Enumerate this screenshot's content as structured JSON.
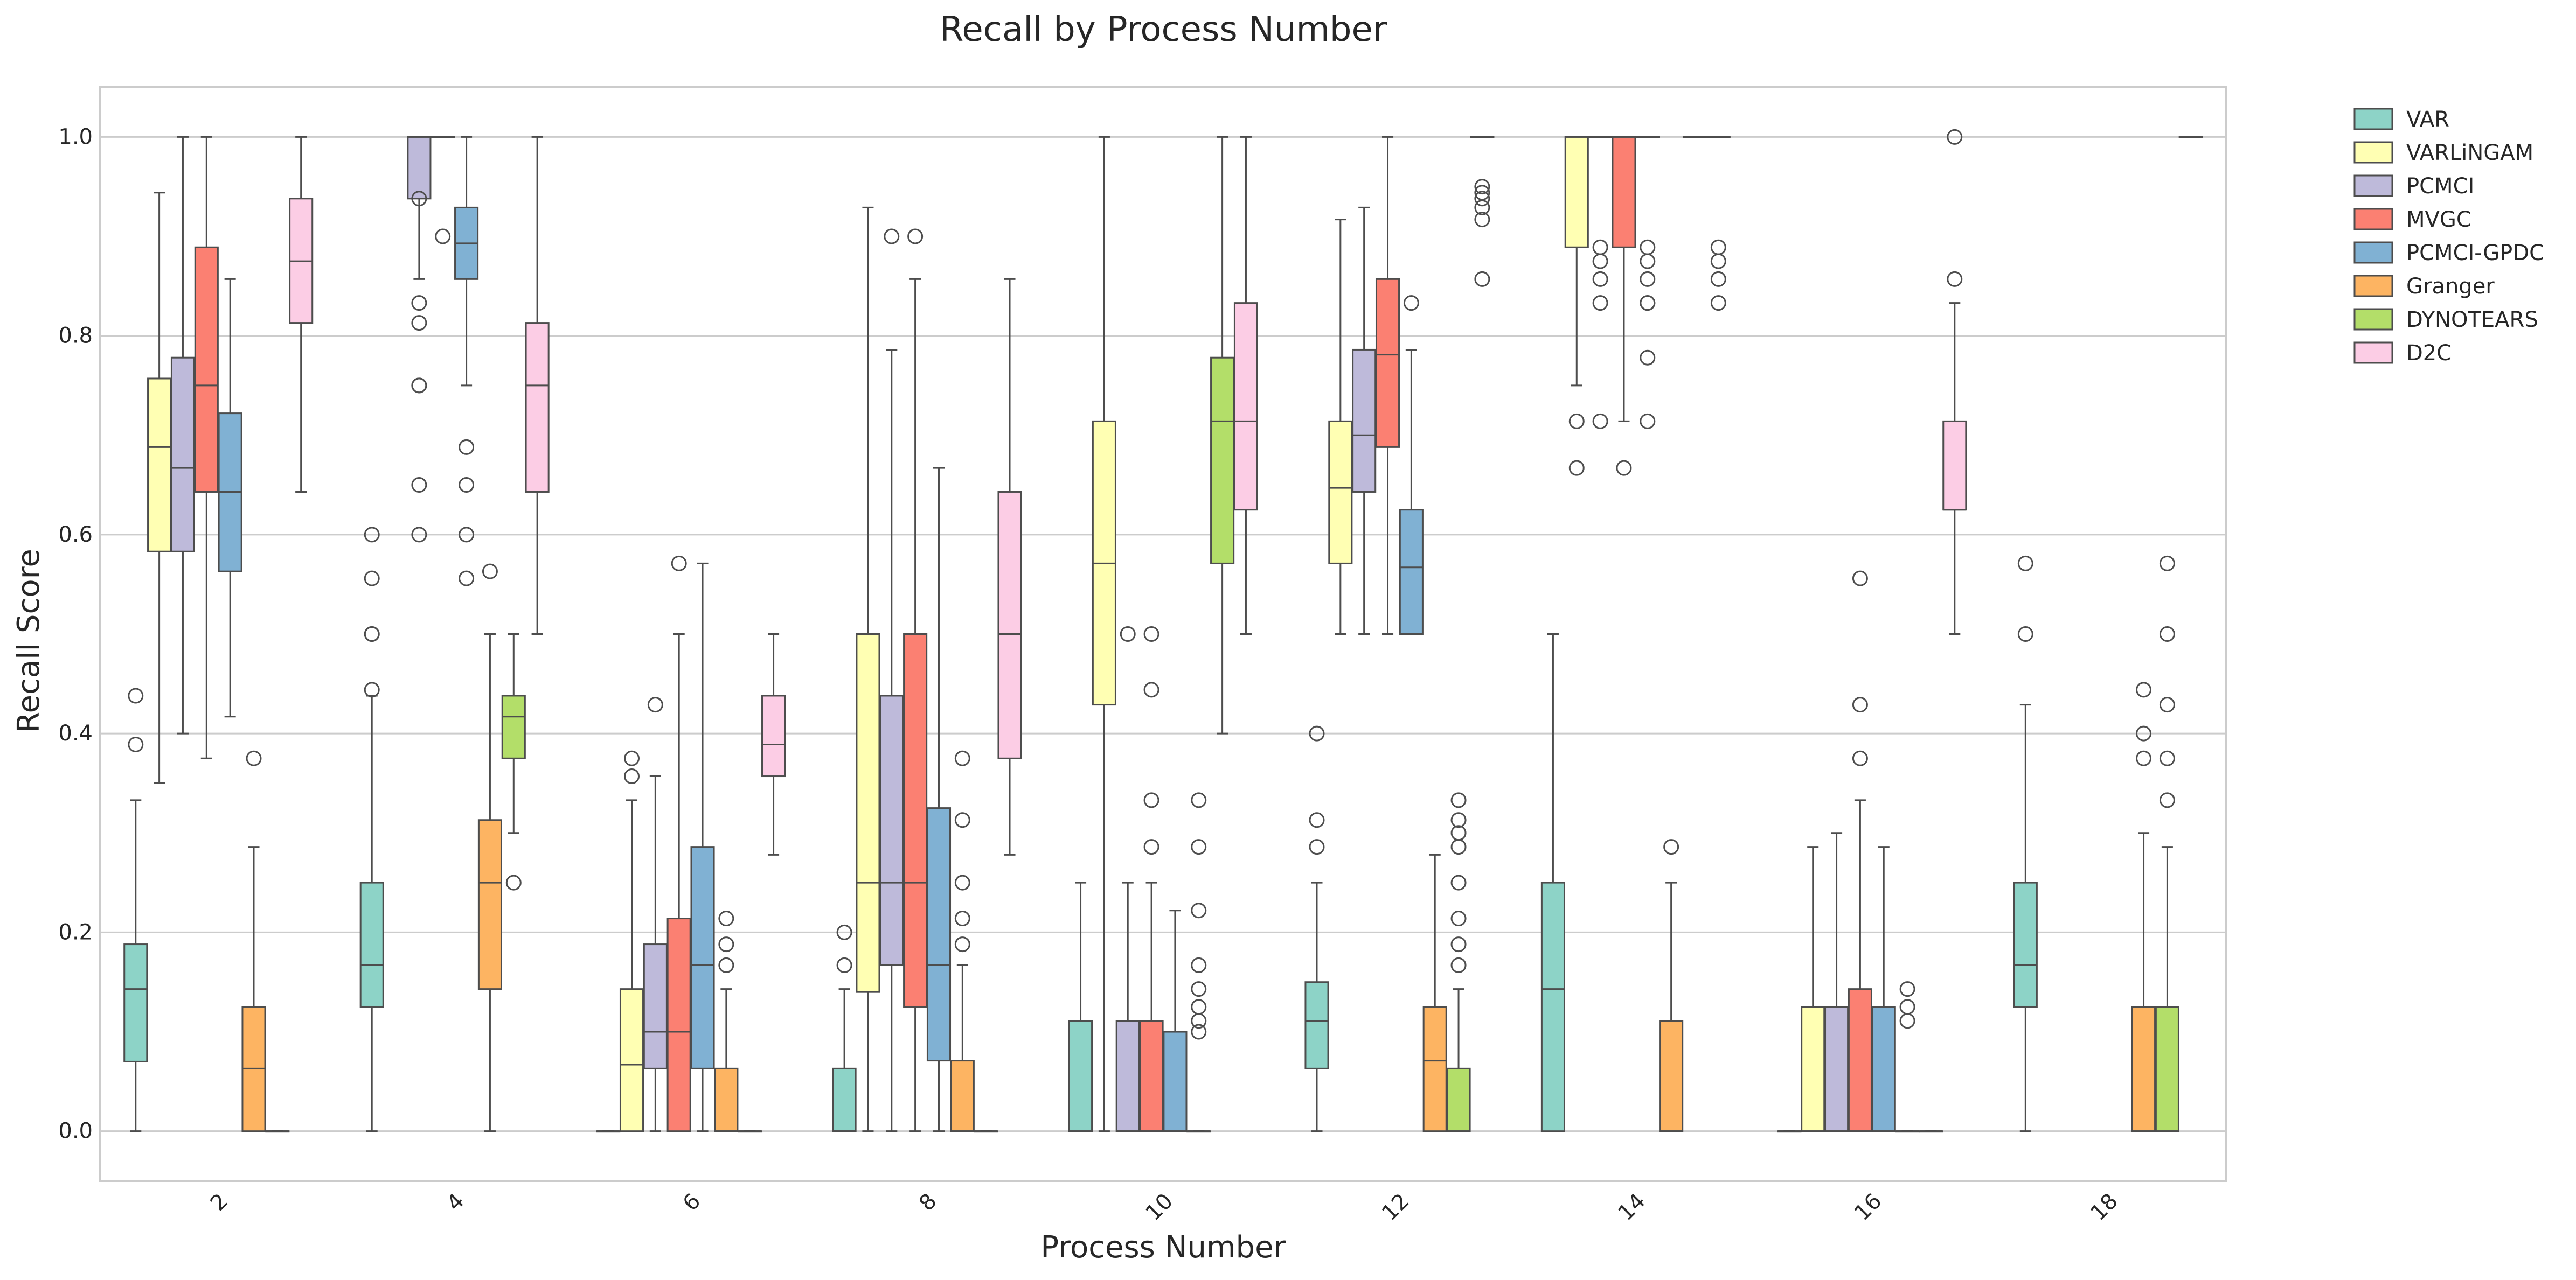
{
  "chart_data": {
    "type": "box",
    "title": "Recall by Process Number",
    "xlabel": "Process Number",
    "ylabel": "Recall Score",
    "ylim": [
      -0.05,
      1.05
    ],
    "yticks": [
      "0.0",
      "0.2",
      "0.4",
      "0.6",
      "0.8",
      "1.0"
    ],
    "ytick_values": [
      0,
      0.2,
      0.4,
      0.6,
      0.8,
      1.0
    ],
    "grid": "horizontal",
    "legend_position": "outside top-right",
    "categories": [
      "2",
      "4",
      "6",
      "8",
      "10",
      "12",
      "14",
      "16",
      "18"
    ],
    "series": [
      {
        "name": "VAR",
        "color": "#8dd3c7",
        "boxes": [
          {
            "min": 0.0,
            "q1": 0.07,
            "median": 0.143,
            "q3": 0.188,
            "max": 0.333,
            "outliers": [
              0.389,
              0.438
            ]
          },
          {
            "min": 0.0,
            "q1": 0.125,
            "median": 0.167,
            "q3": 0.25,
            "max": 0.438,
            "outliers": [
              0.444,
              0.5,
              0.5,
              0.556,
              0.6
            ]
          },
          {
            "min": 0.0,
            "q1": 0.0,
            "median": 0.0,
            "q3": 0.0,
            "max": 0.0,
            "outliers": []
          },
          {
            "min": 0.0,
            "q1": 0.0,
            "median": 0.0,
            "q3": 0.063,
            "max": 0.143,
            "outliers": [
              0.167,
              0.2
            ]
          },
          {
            "min": 0.0,
            "q1": 0.0,
            "median": 0.0,
            "q3": 0.111,
            "max": 0.25,
            "outliers": []
          },
          {
            "min": 0.0,
            "q1": 0.063,
            "median": 0.111,
            "q3": 0.15,
            "max": 0.25,
            "outliers": [
              0.286,
              0.313,
              0.4
            ]
          },
          {
            "min": 0.0,
            "q1": 0.0,
            "median": 0.143,
            "q3": 0.25,
            "max": 0.5,
            "outliers": []
          },
          {
            "min": 0.0,
            "q1": 0.0,
            "median": 0.0,
            "q3": 0.0,
            "max": 0.0,
            "outliers": []
          },
          {
            "min": 0.0,
            "q1": 0.125,
            "median": 0.167,
            "q3": 0.25,
            "max": 0.429,
            "outliers": [
              0.5,
              0.571
            ]
          }
        ]
      },
      {
        "name": "VARLiNGAM",
        "color": "#ffffb3",
        "boxes": [
          {
            "min": 0.35,
            "q1": 0.583,
            "median": 0.688,
            "q3": 0.757,
            "max": 0.944,
            "outliers": []
          },
          null,
          {
            "min": 0.0,
            "q1": 0.0,
            "median": 0.067,
            "q3": 0.143,
            "max": 0.333,
            "outliers": [
              0.357,
              0.375
            ]
          },
          {
            "min": 0.0,
            "q1": 0.14,
            "median": 0.25,
            "q3": 0.5,
            "max": 0.929,
            "outliers": []
          },
          {
            "min": 0.0,
            "q1": 0.429,
            "median": 0.571,
            "q3": 0.714,
            "max": 1.0,
            "outliers": []
          },
          {
            "min": 0.5,
            "q1": 0.571,
            "median": 0.647,
            "q3": 0.714,
            "max": 0.917,
            "outliers": []
          },
          {
            "min": 0.75,
            "q1": 0.889,
            "median": 1.0,
            "q3": 1.0,
            "max": 1.0,
            "outliers": [
              0.714,
              0.667
            ]
          },
          {
            "min": 0.0,
            "q1": 0.0,
            "median": 0.0,
            "q3": 0.125,
            "max": 0.286,
            "outliers": []
          },
          null
        ]
      },
      {
        "name": "PCMCI",
        "color": "#bebada",
        "boxes": [
          {
            "min": 0.4,
            "q1": 0.583,
            "median": 0.667,
            "q3": 0.778,
            "max": 1.0,
            "outliers": []
          },
          {
            "min": 0.857,
            "q1": 0.938,
            "median": 1.0,
            "q3": 1.0,
            "max": 1.0,
            "outliers": [
              0.833,
              0.813,
              0.75,
              0.75,
              0.65,
              0.6,
              0.938
            ]
          },
          {
            "min": 0.0,
            "q1": 0.063,
            "median": 0.1,
            "q3": 0.188,
            "max": 0.357,
            "outliers": [
              0.429
            ]
          },
          {
            "min": 0.0,
            "q1": 0.167,
            "median": 0.25,
            "q3": 0.438,
            "max": 0.786,
            "outliers": [
              0.9
            ]
          },
          {
            "min": 0.0,
            "q1": 0.0,
            "median": 0.0,
            "q3": 0.111,
            "max": 0.25,
            "outliers": [
              0.5
            ]
          },
          {
            "min": 0.5,
            "q1": 0.643,
            "median": 0.7,
            "q3": 0.786,
            "max": 0.929,
            "outliers": []
          },
          {
            "min": 1.0,
            "q1": 1.0,
            "median": 1.0,
            "q3": 1.0,
            "max": 1.0,
            "outliers": [
              0.889,
              0.875,
              0.857,
              0.833,
              0.714
            ]
          },
          {
            "min": 0.0,
            "q1": 0.0,
            "median": 0.0,
            "q3": 0.125,
            "max": 0.3,
            "outliers": []
          },
          null
        ]
      },
      {
        "name": "MVGC",
        "color": "#fb8072",
        "boxes": [
          {
            "min": 0.375,
            "q1": 0.643,
            "median": 0.75,
            "q3": 0.889,
            "max": 1.0,
            "outliers": []
          },
          {
            "min": 1.0,
            "q1": 1.0,
            "median": 1.0,
            "q3": 1.0,
            "max": 1.0,
            "outliers": [
              0.9
            ]
          },
          {
            "min": 0.0,
            "q1": 0.0,
            "median": 0.1,
            "q3": 0.214,
            "max": 0.5,
            "outliers": [
              0.571
            ]
          },
          {
            "min": 0.0,
            "q1": 0.125,
            "median": 0.25,
            "q3": 0.5,
            "max": 0.857,
            "outliers": [
              0.9
            ]
          },
          {
            "min": 0.0,
            "q1": 0.0,
            "median": 0.0,
            "q3": 0.111,
            "max": 0.25,
            "outliers": [
              0.5,
              0.444,
              0.333,
              0.286
            ]
          },
          {
            "min": 0.5,
            "q1": 0.688,
            "median": 0.781,
            "q3": 0.857,
            "max": 1.0,
            "outliers": []
          },
          {
            "min": 0.714,
            "q1": 0.889,
            "median": 1.0,
            "q3": 1.0,
            "max": 1.0,
            "outliers": [
              0.667
            ]
          },
          {
            "min": 0.0,
            "q1": 0.0,
            "median": 0.0,
            "q3": 0.143,
            "max": 0.333,
            "outliers": [
              0.375,
              0.429,
              0.556
            ]
          },
          null
        ]
      },
      {
        "name": "PCMCI-GPDC",
        "color": "#80b1d3",
        "boxes": [
          {
            "min": 0.417,
            "q1": 0.563,
            "median": 0.643,
            "q3": 0.722,
            "max": 0.857,
            "outliers": []
          },
          {
            "min": 0.75,
            "q1": 0.857,
            "median": 0.893,
            "q3": 0.929,
            "max": 1.0,
            "outliers": [
              0.688,
              0.65,
              0.6,
              0.556
            ]
          },
          {
            "min": 0.0,
            "q1": 0.063,
            "median": 0.167,
            "q3": 0.286,
            "max": 0.571,
            "outliers": []
          },
          {
            "min": 0.0,
            "q1": 0.071,
            "median": 0.167,
            "q3": 0.325,
            "max": 0.667,
            "outliers": []
          },
          {
            "min": 0.0,
            "q1": 0.0,
            "median": 0.0,
            "q3": 0.1,
            "max": 0.222,
            "outliers": []
          },
          {
            "min": 0.5,
            "q1": 0.5,
            "median": 0.567,
            "q3": 0.625,
            "max": 0.786,
            "outliers": [
              0.833
            ]
          },
          {
            "min": 1.0,
            "q1": 1.0,
            "median": 1.0,
            "q3": 1.0,
            "max": 1.0,
            "outliers": [
              0.889,
              0.875,
              0.857,
              0.833,
              0.833,
              0.778,
              0.714
            ]
          },
          {
            "min": 0.0,
            "q1": 0.0,
            "median": 0.0,
            "q3": 0.125,
            "max": 0.286,
            "outliers": []
          },
          null
        ]
      },
      {
        "name": "Granger",
        "color": "#fdb462",
        "boxes": [
          {
            "min": 0.0,
            "q1": 0.0,
            "median": 0.063,
            "q3": 0.125,
            "max": 0.286,
            "outliers": [
              0.375
            ]
          },
          {
            "min": 0.0,
            "q1": 0.143,
            "median": 0.25,
            "q3": 0.313,
            "max": 0.5,
            "outliers": [
              0.563
            ]
          },
          {
            "min": 0.0,
            "q1": 0.0,
            "median": 0.0,
            "q3": 0.063,
            "max": 0.143,
            "outliers": [
              0.167,
              0.188,
              0.214
            ]
          },
          {
            "min": 0.0,
            "q1": 0.0,
            "median": 0.0,
            "q3": 0.071,
            "max": 0.167,
            "outliers": [
              0.188,
              0.214,
              0.25,
              0.313,
              0.375
            ]
          },
          {
            "min": 0.0,
            "q1": 0.0,
            "median": 0.0,
            "q3": 0.0,
            "max": 0.0,
            "outliers": [
              0.1,
              0.111,
              0.125,
              0.143,
              0.167,
              0.222,
              0.286,
              0.333
            ]
          },
          {
            "min": 0.0,
            "q1": 0.0,
            "median": 0.071,
            "q3": 0.125,
            "max": 0.278,
            "outliers": []
          },
          {
            "min": 0.0,
            "q1": 0.0,
            "median": 0.0,
            "q3": 0.111,
            "max": 0.25,
            "outliers": [
              0.286
            ]
          },
          {
            "min": 0.0,
            "q1": 0.0,
            "median": 0.0,
            "q3": 0.0,
            "max": 0.0,
            "outliers": [
              0.111,
              0.125,
              0.143
            ]
          },
          {
            "min": 0.0,
            "q1": 0.0,
            "median": 0.0,
            "q3": 0.125,
            "max": 0.3,
            "outliers": [
              0.375,
              0.4,
              0.444
            ]
          }
        ]
      },
      {
        "name": "DYNOTEARS",
        "color": "#b3de69",
        "boxes": [
          {
            "min": 0.0,
            "q1": 0.0,
            "median": 0.0,
            "q3": 0.0,
            "max": 0.0,
            "outliers": []
          },
          {
            "min": 0.3,
            "q1": 0.375,
            "median": 0.417,
            "q3": 0.438,
            "max": 0.5,
            "outliers": [
              0.25
            ]
          },
          {
            "min": 0.0,
            "q1": 0.0,
            "median": 0.0,
            "q3": 0.0,
            "max": 0.0,
            "outliers": []
          },
          {
            "min": 0.0,
            "q1": 0.0,
            "median": 0.0,
            "q3": 0.0,
            "max": 0.0,
            "outliers": []
          },
          {
            "min": 0.4,
            "q1": 0.571,
            "median": 0.714,
            "q3": 0.778,
            "max": 1.0,
            "outliers": []
          },
          {
            "min": 0.0,
            "q1": 0.0,
            "median": 0.0,
            "q3": 0.063,
            "max": 0.143,
            "outliers": [
              0.167,
              0.188,
              0.214,
              0.25,
              0.286,
              0.3,
              0.313,
              0.333
            ]
          },
          {
            "min": 1.0,
            "q1": 1.0,
            "median": 1.0,
            "q3": 1.0,
            "max": 1.0,
            "outliers": []
          },
          {
            "min": 0.0,
            "q1": 0.0,
            "median": 0.0,
            "q3": 0.0,
            "max": 0.0,
            "outliers": []
          },
          {
            "min": 0.0,
            "q1": 0.0,
            "median": 0.0,
            "q3": 0.125,
            "max": 0.286,
            "outliers": [
              0.333,
              0.375,
              0.429,
              0.5,
              0.571
            ]
          }
        ]
      },
      {
        "name": "D2C",
        "color": "#fccde5",
        "boxes": [
          {
            "min": 0.643,
            "q1": 0.813,
            "median": 0.875,
            "q3": 0.938,
            "max": 1.0,
            "outliers": []
          },
          {
            "min": 0.5,
            "q1": 0.643,
            "median": 0.75,
            "q3": 0.813,
            "max": 1.0,
            "outliers": []
          },
          {
            "min": 0.278,
            "q1": 0.357,
            "median": 0.389,
            "q3": 0.438,
            "max": 0.5,
            "outliers": []
          },
          {
            "min": 0.278,
            "q1": 0.375,
            "median": 0.5,
            "q3": 0.643,
            "max": 0.857,
            "outliers": []
          },
          {
            "min": 0.5,
            "q1": 0.625,
            "median": 0.714,
            "q3": 0.833,
            "max": 1.0,
            "outliers": []
          },
          {
            "min": 1.0,
            "q1": 1.0,
            "median": 1.0,
            "q3": 1.0,
            "max": 1.0,
            "outliers": [
              0.95,
              0.944,
              0.938,
              0.929,
              0.917,
              0.857
            ]
          },
          {
            "min": 1.0,
            "q1": 1.0,
            "median": 1.0,
            "q3": 1.0,
            "max": 1.0,
            "outliers": [
              0.889,
              0.875,
              0.857,
              0.833
            ]
          },
          {
            "min": 0.5,
            "q1": 0.625,
            "median": 0.625,
            "q3": 0.714,
            "max": 0.833,
            "outliers": [
              0.857,
              1.0
            ]
          },
          {
            "min": 1.0,
            "q1": 1.0,
            "median": 1.0,
            "q3": 1.0,
            "max": 1.0,
            "outliers": []
          }
        ]
      }
    ]
  }
}
